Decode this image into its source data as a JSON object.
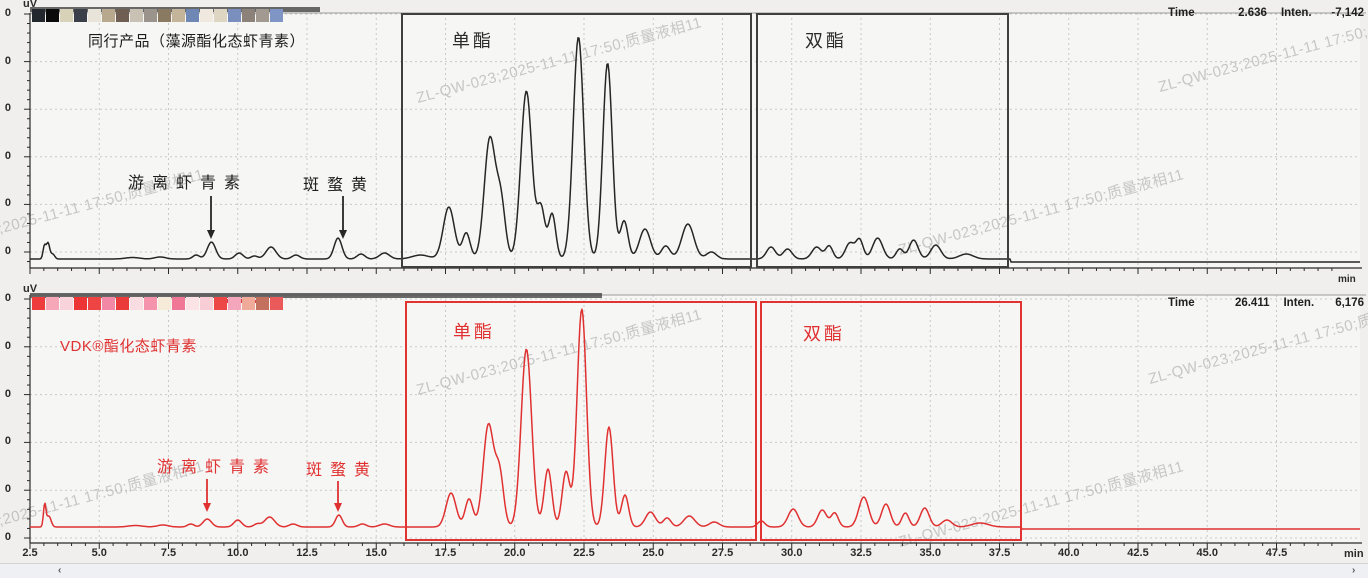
{
  "watermark": {
    "text": "ZL-QW-023;2025-11-11 17:50;质量液相11"
  },
  "axes": {
    "y_unit": "uV",
    "x_unit": "min",
    "y_tick_label": "0",
    "x_tick_labels": [
      "2.5",
      "5.0",
      "7.5",
      "10.0",
      "12.5",
      "15.0",
      "17.5",
      "20.0",
      "22.5",
      "25.0",
      "27.5",
      "30.0",
      "32.5",
      "35.0",
      "37.5",
      "40.0",
      "42.5",
      "45.0",
      "47.5"
    ]
  },
  "charts": [
    {
      "title": "同行产品（藻源酯化态虾青素）",
      "color": "#2b2b2b",
      "status": {
        "time_label": "Time",
        "time_value": "2.636",
        "inten_label": "Inten.",
        "inten_value": "-7,142"
      },
      "region_labels": {
        "monoester": "单酯",
        "diester": "双酯"
      },
      "annotations": {
        "free_astaxanthin": "游离虾青素",
        "canthaxanthin": "斑蝥黄"
      },
      "legend_swatches": [
        "#23272e",
        "#0b0b0b",
        "#d8d2b8",
        "#3a3f4a",
        "#e8e4da",
        "#b8a88e",
        "#6e5f52",
        "#c9c2b4",
        "#9a948c",
        "#8a7a62",
        "#c4b49a",
        "#6f87b5",
        "#efe9e0",
        "#ded6c2",
        "#7b8fbf",
        "#8c827a",
        "#a29a90",
        "#7f95c5"
      ]
    },
    {
      "title": "VDK®酯化态虾青素",
      "color": "#e03131",
      "status": {
        "time_label": "Time",
        "time_value": "26.411",
        "inten_label": "Inten.",
        "inten_value": "6,176"
      },
      "region_labels": {
        "monoester": "单酯",
        "diester": "双酯"
      },
      "annotations": {
        "free_astaxanthin": "游离虾青素",
        "canthaxanthin": "斑蝥黄"
      },
      "legend_swatches": [
        "#ee3b3b",
        "#f6a8b8",
        "#f9d3dc",
        "#ec3434",
        "#ee4444",
        "#f287a6",
        "#ea3a3a",
        "#fadde2",
        "#f493ab",
        "#f6ead9",
        "#f07795",
        "#fbe3e6",
        "#f8cdd6",
        "#ec4646",
        "#f4a6bc",
        "#efaa9a",
        "#c4705e",
        "#ea5a5a"
      ]
    }
  ],
  "scrollbar": {
    "left_arrow": "‹",
    "right_arrow": "›"
  },
  "chart_data": {
    "type": "line",
    "x_unit": "min",
    "y_unit": "uV",
    "x_range_shown": [
      2.3,
      49.8
    ],
    "x_ticks": [
      2.5,
      5.0,
      7.5,
      10.0,
      12.5,
      15.0,
      17.5,
      20.0,
      22.5,
      25.0,
      27.5,
      30.0,
      32.5,
      35.0,
      37.5,
      40.0,
      42.5,
      45.0,
      47.5
    ],
    "grid": "dashed",
    "note": "peaks_t_h_w = [retention_time_min, relative_height, gaussian_sigma_min]",
    "series": [
      {
        "name": "同行产品（藻源酯化态虾青素）",
        "color": "#2b2b2b",
        "status": {
          "Time": "2.636",
          "Inten.": "-7,142"
        },
        "peak_annotations": [
          {
            "label": "游离虾青素",
            "t": 9.0
          },
          {
            "label": "斑蝥黄",
            "t": 13.6
          }
        ],
        "regions": [
          {
            "label": "单酯",
            "from": 15.9,
            "to": 28.5
          },
          {
            "label": "双酯",
            "from": 28.7,
            "to": 37.8
          }
        ],
        "baseline_shift": {
          "after_min": 37.9,
          "px": 3
        },
        "peaks_t_h_w": [
          [
            3.02,
            13,
            0.05
          ],
          [
            3.15,
            16,
            0.06
          ],
          [
            3.32,
            5,
            0.07
          ],
          [
            6.2,
            1.5,
            0.25
          ],
          [
            7.2,
            2,
            0.2
          ],
          [
            8.5,
            4,
            0.12
          ],
          [
            9.05,
            17,
            0.15
          ],
          [
            10.05,
            6,
            0.14
          ],
          [
            10.6,
            3,
            0.12
          ],
          [
            11.2,
            12,
            0.18
          ],
          [
            12.1,
            4,
            0.14
          ],
          [
            13.62,
            21,
            0.14
          ],
          [
            14.45,
            5,
            0.14
          ],
          [
            15.3,
            6,
            0.18
          ],
          [
            16.6,
            4,
            0.3
          ],
          [
            17.62,
            52,
            0.2
          ],
          [
            18.25,
            26,
            0.14
          ],
          [
            19.1,
            120,
            0.2
          ],
          [
            19.5,
            55,
            0.16
          ],
          [
            20.42,
            168,
            0.2
          ],
          [
            20.95,
            50,
            0.14
          ],
          [
            21.35,
            45,
            0.13
          ],
          [
            22.3,
            222,
            0.19
          ],
          [
            23.35,
            196,
            0.17
          ],
          [
            23.95,
            38,
            0.14
          ],
          [
            24.7,
            30,
            0.2
          ],
          [
            25.45,
            13,
            0.16
          ],
          [
            26.25,
            35,
            0.22
          ],
          [
            27.1,
            7,
            0.18
          ],
          [
            29.25,
            12,
            0.16
          ],
          [
            29.85,
            10,
            0.16
          ],
          [
            30.9,
            12,
            0.17
          ],
          [
            31.35,
            13,
            0.13
          ],
          [
            32.1,
            16,
            0.16
          ],
          [
            32.45,
            19,
            0.13
          ],
          [
            33.1,
            21,
            0.18
          ],
          [
            33.9,
            10,
            0.13
          ],
          [
            34.4,
            19,
            0.16
          ],
          [
            35.2,
            14,
            0.18
          ],
          [
            36.3,
            5,
            0.25
          ]
        ]
      },
      {
        "name": "VDK®酯化态虾青素",
        "color": "#e03131",
        "status": {
          "Time": "26.411",
          "Inten.": "6,176"
        },
        "peak_annotations": [
          {
            "label": "游离虾青素",
            "t": 8.9
          },
          {
            "label": "斑蝥黄",
            "t": 13.65
          }
        ],
        "regions": [
          {
            "label": "单酯",
            "from": 16.1,
            "to": 28.7
          },
          {
            "label": "双酯",
            "from": 28.9,
            "to": 38.3
          }
        ],
        "baseline_shift": {
          "after_min": 38.3,
          "px": 2
        },
        "peaks_t_h_w": [
          [
            3.03,
            22,
            0.045
          ],
          [
            3.18,
            11,
            0.08
          ],
          [
            6.3,
            1.5,
            0.25
          ],
          [
            7.3,
            2,
            0.2
          ],
          [
            8.3,
            3,
            0.12
          ],
          [
            8.9,
            8,
            0.15
          ],
          [
            10.0,
            7,
            0.14
          ],
          [
            10.7,
            3,
            0.12
          ],
          [
            11.15,
            10,
            0.18
          ],
          [
            12.0,
            3,
            0.14
          ],
          [
            13.65,
            12,
            0.12
          ],
          [
            14.5,
            3,
            0.14
          ],
          [
            15.3,
            3,
            0.18
          ],
          [
            17.7,
            34,
            0.18
          ],
          [
            18.35,
            28,
            0.14
          ],
          [
            19.05,
            102,
            0.19
          ],
          [
            19.45,
            52,
            0.15
          ],
          [
            20.42,
            178,
            0.19
          ],
          [
            21.2,
            58,
            0.14
          ],
          [
            21.85,
            55,
            0.14
          ],
          [
            22.42,
            218,
            0.17
          ],
          [
            23.4,
            100,
            0.15
          ],
          [
            23.98,
            32,
            0.13
          ],
          [
            24.9,
            15,
            0.18
          ],
          [
            25.5,
            9,
            0.14
          ],
          [
            26.3,
            11,
            0.2
          ],
          [
            27.2,
            5,
            0.18
          ],
          [
            28.9,
            6,
            0.13
          ],
          [
            30.05,
            18,
            0.18
          ],
          [
            31.1,
            17,
            0.16
          ],
          [
            31.55,
            14,
            0.13
          ],
          [
            32.6,
            30,
            0.18
          ],
          [
            33.4,
            23,
            0.16
          ],
          [
            34.1,
            14,
            0.13
          ],
          [
            34.8,
            19,
            0.16
          ],
          [
            35.6,
            7,
            0.18
          ],
          [
            36.8,
            4,
            0.3
          ]
        ]
      }
    ]
  }
}
